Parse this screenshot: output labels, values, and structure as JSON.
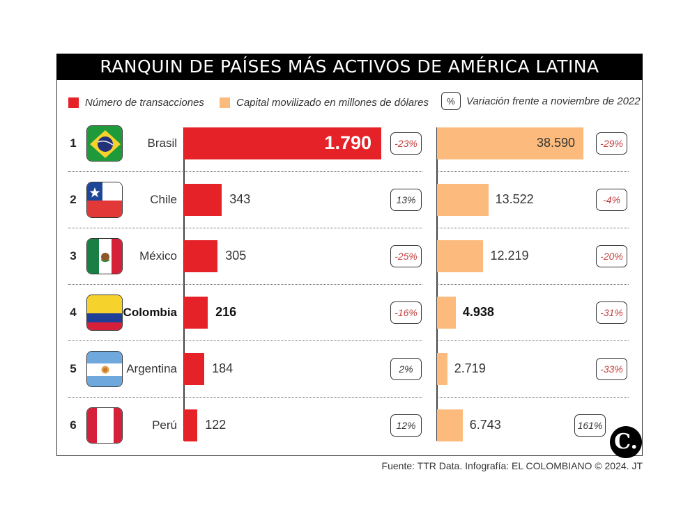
{
  "title": "RANQUIN DE PAÍSES MÁS ACTIVOS DE AMÉRICA LATINA",
  "legend": {
    "transactions": "Número de transacciones",
    "capital": "Capital movilizado en millones de dólares",
    "pct_key": "%",
    "variation": "Variación frente a noviembre de 2022"
  },
  "colors": {
    "transactions": "#e52228",
    "capital": "#fcbb7c",
    "negative_pct": "#c2413f",
    "title_bg": "#000000"
  },
  "source": "Fuente: TTR Data. Infografía: EL COLOMBIANO © 2024. JT",
  "logo": "C.",
  "chart_data": {
    "type": "bar",
    "title": "RANQUIN DE PAÍSES MÁS ACTIVOS DE AMÉRICA LATINA",
    "orientation": "horizontal",
    "categories": [
      "Brasil",
      "Chile",
      "México",
      "Colombia",
      "Argentina",
      "Perú"
    ],
    "ranks": [
      "1",
      "2",
      "3",
      "4",
      "5",
      "6"
    ],
    "flags": [
      "brazil-flag",
      "chile-flag",
      "mexico-flag",
      "colombia-flag",
      "argentina-flag",
      "peru-flag"
    ],
    "highlight": "Colombia",
    "series": [
      {
        "name": "Número de transacciones",
        "values": [
          1790,
          343,
          305,
          216,
          184,
          122
        ],
        "labels": [
          "1.790",
          "343",
          "305",
          "216",
          "184",
          "122"
        ],
        "variation": [
          "-23%",
          "13%",
          "-25%",
          "-16%",
          "2%",
          "12%"
        ]
      },
      {
        "name": "Capital movilizado en millones de dólares",
        "values": [
          38590,
          13522,
          12219,
          4938,
          2719,
          6743
        ],
        "labels": [
          "38.590",
          "13.522",
          "12.219",
          "4.938",
          "2.719",
          "6.743"
        ],
        "variation": [
          "-29%",
          "-4%",
          "-20%",
          "-31%",
          "-33%",
          "161%"
        ]
      }
    ],
    "legend_position": "top",
    "grid": false
  }
}
